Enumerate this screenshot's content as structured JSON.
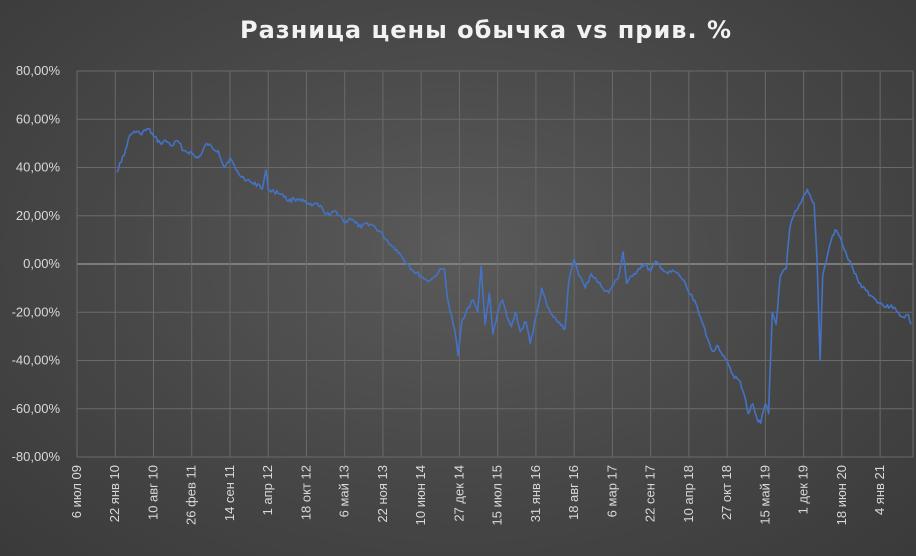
{
  "chart_data": {
    "type": "line",
    "title": "Разница цены обычка vs прив. %",
    "xlabel": "",
    "ylabel": "",
    "ylim": [
      -80,
      80
    ],
    "y_tick_labels": [
      "80,00%",
      "60,00%",
      "40,00%",
      "20,00%",
      "0,00%",
      "-20,00%",
      "-40,00%",
      "-60,00%",
      "-80,00%"
    ],
    "y_tick_values": [
      80,
      60,
      40,
      20,
      0,
      -20,
      -40,
      -60,
      -80
    ],
    "xlim": [
      "2009-07-06",
      "2021-06-25"
    ],
    "x_tick_labels": [
      "6 июл 09",
      "22 янв 10",
      "10 авг 10",
      "26 фев 11",
      "14 сен 11",
      "1 апр 12",
      "18 окт 12",
      "6 май 13",
      "22 ноя 13",
      "10 июн 14",
      "27 дек 14",
      "15 июл 15",
      "31 янв 16",
      "18 авг 16",
      "6 мар 17",
      "22 сен 17",
      "10 апр 18",
      "27 окт 18",
      "15 май 19",
      "1 дек 19",
      "18 июн 20",
      "4 янв 21"
    ],
    "x_tick_dates": [
      "2009-07-06",
      "2010-01-22",
      "2010-08-10",
      "2011-02-26",
      "2011-09-14",
      "2012-04-01",
      "2012-10-18",
      "2013-05-06",
      "2013-11-22",
      "2014-06-10",
      "2014-12-27",
      "2015-07-15",
      "2016-01-31",
      "2016-08-18",
      "2017-03-06",
      "2017-09-22",
      "2018-04-10",
      "2018-10-27",
      "2019-05-15",
      "2019-12-01",
      "2020-06-18",
      "2021-01-04"
    ],
    "grid": true,
    "colors": {
      "line": "#4472c4",
      "grid": "#6a6a6a",
      "zero_line": "#8c8c8c",
      "text": "#d9d9d9",
      "title": "#f2f2f2"
    },
    "series": [
      {
        "points": [
          [
            "2010-02-01",
            38
          ],
          [
            "2010-02-15",
            42
          ],
          [
            "2010-03-10",
            45
          ],
          [
            "2010-04-01",
            52
          ],
          [
            "2010-05-01",
            55
          ],
          [
            "2010-06-01",
            54
          ],
          [
            "2010-07-15",
            56
          ],
          [
            "2010-08-10",
            53
          ],
          [
            "2010-09-15",
            50
          ],
          [
            "2010-10-15",
            51
          ],
          [
            "2010-11-15",
            49
          ],
          [
            "2010-12-15",
            51
          ],
          [
            "2011-01-15",
            47
          ],
          [
            "2011-02-26",
            46
          ],
          [
            "2011-03-20",
            44
          ],
          [
            "2011-04-15",
            45
          ],
          [
            "2011-05-15",
            50
          ],
          [
            "2011-06-15",
            48
          ],
          [
            "2011-07-15",
            47
          ],
          [
            "2011-08-15",
            40
          ],
          [
            "2011-09-14",
            44
          ],
          [
            "2011-10-15",
            39
          ],
          [
            "2011-11-15",
            36
          ],
          [
            "2011-12-15",
            35
          ],
          [
            "2012-01-15",
            33
          ],
          [
            "2012-02-15",
            33
          ],
          [
            "2012-03-01",
            31
          ],
          [
            "2012-03-20",
            39
          ],
          [
            "2012-04-01",
            31
          ],
          [
            "2012-05-01",
            30
          ],
          [
            "2012-06-15",
            29
          ],
          [
            "2012-07-15",
            26
          ],
          [
            "2012-08-15",
            27
          ],
          [
            "2012-09-15",
            27
          ],
          [
            "2012-10-18",
            25
          ],
          [
            "2012-11-15",
            24
          ],
          [
            "2012-12-15",
            25
          ],
          [
            "2013-01-15",
            22
          ],
          [
            "2013-02-15",
            20
          ],
          [
            "2013-03-15",
            22
          ],
          [
            "2013-04-15",
            20
          ],
          [
            "2013-05-06",
            17
          ],
          [
            "2013-06-01",
            19
          ],
          [
            "2013-07-01",
            17
          ],
          [
            "2013-08-01",
            15
          ],
          [
            "2013-09-01",
            17
          ],
          [
            "2013-10-01",
            16
          ],
          [
            "2013-11-22",
            12
          ],
          [
            "2014-01-01",
            8
          ],
          [
            "2014-02-01",
            6
          ],
          [
            "2014-03-01",
            3
          ],
          [
            "2014-04-01",
            0
          ],
          [
            "2014-05-01",
            -3
          ],
          [
            "2014-06-10",
            -5
          ],
          [
            "2014-07-10",
            -7
          ],
          [
            "2014-08-10",
            -6
          ],
          [
            "2014-09-10",
            -3
          ],
          [
            "2014-10-10",
            -2
          ],
          [
            "2014-10-25",
            -14
          ],
          [
            "2014-11-10",
            -20
          ],
          [
            "2014-12-01",
            -27
          ],
          [
            "2014-12-20",
            -38
          ],
          [
            "2015-01-10",
            -23
          ],
          [
            "2015-02-10",
            -18
          ],
          [
            "2015-03-10",
            -15
          ],
          [
            "2015-04-01",
            -20
          ],
          [
            "2015-04-20",
            -1
          ],
          [
            "2015-05-10",
            -25
          ],
          [
            "2015-06-01",
            -12
          ],
          [
            "2015-06-20",
            -29
          ],
          [
            "2015-07-15",
            -20
          ],
          [
            "2015-08-10",
            -15
          ],
          [
            "2015-09-01",
            -22
          ],
          [
            "2015-09-25",
            -26
          ],
          [
            "2015-10-15",
            -20
          ],
          [
            "2015-11-10",
            -28
          ],
          [
            "2015-12-10",
            -24
          ],
          [
            "2016-01-01",
            -33
          ],
          [
            "2016-01-31",
            -22
          ],
          [
            "2016-03-01",
            -10
          ],
          [
            "2016-04-01",
            -18
          ],
          [
            "2016-05-01",
            -22
          ],
          [
            "2016-06-01",
            -24
          ],
          [
            "2016-07-01",
            -27
          ],
          [
            "2016-07-20",
            -8
          ],
          [
            "2016-08-18",
            2
          ],
          [
            "2016-09-15",
            -5
          ],
          [
            "2016-10-15",
            -10
          ],
          [
            "2016-11-15",
            -4
          ],
          [
            "2016-12-15",
            -7
          ],
          [
            "2017-01-15",
            -10
          ],
          [
            "2017-02-15",
            -12
          ],
          [
            "2017-03-06",
            -9
          ],
          [
            "2017-04-05",
            -6
          ],
          [
            "2017-05-01",
            5
          ],
          [
            "2017-05-20",
            -8
          ],
          [
            "2017-06-20",
            -5
          ],
          [
            "2017-07-20",
            -2
          ],
          [
            "2017-08-20",
            0
          ],
          [
            "2017-09-22",
            -3
          ],
          [
            "2017-10-22",
            1
          ],
          [
            "2017-11-22",
            -2
          ],
          [
            "2017-12-22",
            -4
          ],
          [
            "2018-01-22",
            -3
          ],
          [
            "2018-02-22",
            -5
          ],
          [
            "2018-03-22",
            -8
          ],
          [
            "2018-04-10",
            -12
          ],
          [
            "2018-05-10",
            -15
          ],
          [
            "2018-06-10",
            -22
          ],
          [
            "2018-07-10",
            -30
          ],
          [
            "2018-08-10",
            -36
          ],
          [
            "2018-09-10",
            -34
          ],
          [
            "2018-10-10",
            -38
          ],
          [
            "2018-10-27",
            -40
          ],
          [
            "2018-11-27",
            -46
          ],
          [
            "2018-12-27",
            -48
          ],
          [
            "2019-01-27",
            -55
          ],
          [
            "2019-02-15",
            -62
          ],
          [
            "2019-03-10",
            -58
          ],
          [
            "2019-04-01",
            -64
          ],
          [
            "2019-04-20",
            -66
          ],
          [
            "2019-05-15",
            -58
          ],
          [
            "2019-06-01",
            -62
          ],
          [
            "2019-06-20",
            -20
          ],
          [
            "2019-07-10",
            -25
          ],
          [
            "2019-08-01",
            -5
          ],
          [
            "2019-09-01",
            -2
          ],
          [
            "2019-09-20",
            15
          ],
          [
            "2019-10-10",
            20
          ],
          [
            "2019-11-01",
            23
          ],
          [
            "2019-12-01",
            28
          ],
          [
            "2019-12-20",
            31
          ],
          [
            "2020-01-10",
            27
          ],
          [
            "2020-01-25",
            25
          ],
          [
            "2020-02-10",
            0
          ],
          [
            "2020-02-25",
            -40
          ],
          [
            "2020-03-10",
            -5
          ],
          [
            "2020-03-25",
            0
          ],
          [
            "2020-04-10",
            6
          ],
          [
            "2020-05-01",
            12
          ],
          [
            "2020-05-20",
            14
          ],
          [
            "2020-06-18",
            9
          ],
          [
            "2020-07-15",
            3
          ],
          [
            "2020-08-15",
            -2
          ],
          [
            "2020-09-15",
            -8
          ],
          [
            "2020-10-15",
            -10
          ],
          [
            "2020-11-15",
            -13
          ],
          [
            "2020-12-15",
            -15
          ],
          [
            "2021-01-04",
            -16
          ],
          [
            "2021-02-04",
            -18
          ],
          [
            "2021-03-04",
            -17
          ],
          [
            "2021-04-04",
            -20
          ],
          [
            "2021-05-04",
            -22
          ],
          [
            "2021-06-01",
            -21
          ],
          [
            "2021-06-15",
            -25
          ]
        ]
      }
    ]
  }
}
